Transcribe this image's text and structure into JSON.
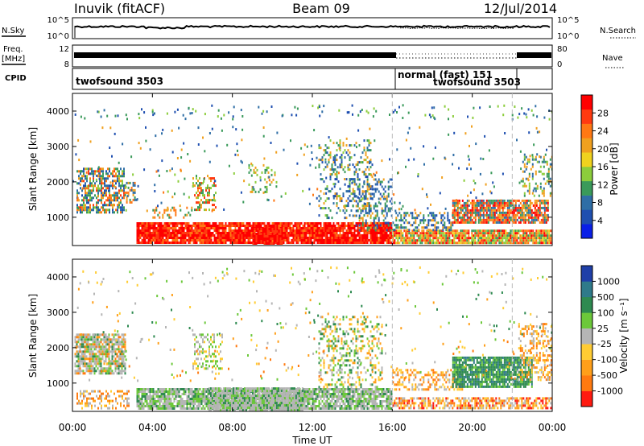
{
  "header": {
    "station": "Inuvik (fitACF)",
    "beam": "Beam 09",
    "date": "12/Jul/2014"
  },
  "ctrl": {
    "nsky_label": "N.Sky",
    "nsky_ticks": [
      "10^5",
      "10^0"
    ],
    "nsearch_label": "N.Search",
    "nsearch_ticks": [
      "10^5",
      "10^0"
    ],
    "freq_label": "Freq.",
    "freq_unit": "[MHz]",
    "freq_ticks": [
      "12",
      "8"
    ],
    "nave_label": "Nave",
    "nave_ticks": [
      "80",
      "0"
    ],
    "cpid_label": "CPID",
    "programs": [
      {
        "name": "twofsound 3503",
        "start": 0,
        "end": 16
      },
      {
        "name": "normal (fast) 151",
        "start": 16,
        "end": 22
      },
      {
        "name": "twofsound 3503",
        "start": 18.5,
        "end": 22
      }
    ]
  },
  "x_axis": {
    "label": "Time UT",
    "ticks": [
      "00:00",
      "04:00",
      "08:00",
      "12:00",
      "16:00",
      "20:00",
      "00:00"
    ]
  },
  "chart_data": [
    {
      "type": "heatmap",
      "title": "",
      "xlabel": "Time UT",
      "ylabel": "Slant Range [km]",
      "y_ticks": [
        "1000",
        "2000",
        "3000",
        "4000"
      ],
      "xlim": [
        0,
        24
      ],
      "ylim": [
        200,
        4500
      ],
      "colorbar": {
        "label": "Power [dB]",
        "ticks": [
          "4",
          "8",
          "12",
          "16",
          "20",
          "24",
          "28"
        ],
        "colors": [
          "#0a1fe6",
          "#1f4fb0",
          "#2f6ea6",
          "#3a9a5a",
          "#8ccd3c",
          "#f0d21e",
          "#f0a01e",
          "#ff7814",
          "#ff3a10",
          "#ff0000"
        ]
      },
      "regions": [
        {
          "x": [
            0,
            2.5
          ],
          "y": [
            1200,
            2400
          ],
          "value": "mixed green/blue/red"
        },
        {
          "x": [
            3,
            16
          ],
          "y": [
            250,
            850
          ],
          "value": 28
        },
        {
          "x": [
            16,
            24
          ],
          "y": [
            250,
            600
          ],
          "value": 24
        },
        {
          "x": [
            19,
            24
          ],
          "y": [
            900,
            1500
          ],
          "value": 22
        }
      ]
    },
    {
      "type": "heatmap",
      "title": "",
      "xlabel": "Time UT",
      "ylabel": "Slant Range [km]",
      "y_ticks": [
        "1000",
        "2000",
        "3000",
        "4000"
      ],
      "xlim": [
        0,
        24
      ],
      "ylim": [
        200,
        4500
      ],
      "colorbar": {
        "label": "Velocity [m s⁻¹]",
        "ticks": [
          "1000",
          "500",
          "100",
          "25",
          "-25",
          "-100",
          "-500",
          "-1000"
        ],
        "colors": [
          "#1f3fa8",
          "#2f7a8a",
          "#2e8a50",
          "#6cc83a",
          "#b5b5b5",
          "#ffcc33",
          "#ff9f1a",
          "#ff7a10",
          "#ff1a10"
        ]
      },
      "regions": [
        {
          "x": [
            0,
            2.5
          ],
          "y": [
            1300,
            2300
          ],
          "value": "ground scatter (grey)"
        },
        {
          "x": [
            3,
            16
          ],
          "y": [
            250,
            850
          ],
          "value": "ground scatter (grey)"
        },
        {
          "x": [
            19,
            23
          ],
          "y": [
            900,
            1700
          ],
          "value": 150
        }
      ]
    }
  ]
}
